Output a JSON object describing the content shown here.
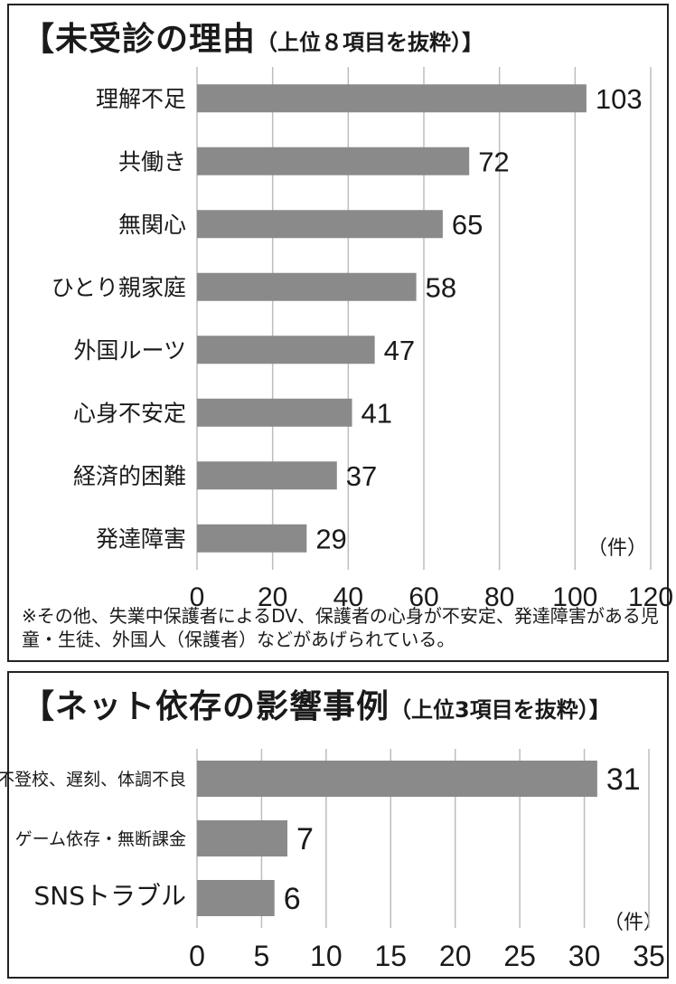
{
  "chart_data": [
    {
      "type": "bar",
      "orientation": "horizontal",
      "title": "【未受診の理由",
      "subtitle": "（上位８項目を抜粋）】",
      "categories": [
        "理解不足",
        "共働き",
        "無関心",
        "ひとり親家庭",
        "外国ルーツ",
        "心身不安定",
        "経済的困難",
        "発達障害"
      ],
      "values": [
        103,
        72,
        65,
        58,
        47,
        41,
        37,
        29
      ],
      "xlim": [
        0,
        120
      ],
      "xticks": [
        0,
        20,
        40,
        60,
        80,
        100,
        120
      ],
      "unit_label": "（件）",
      "grid": true,
      "bar_color": "#8a8a8a",
      "note": "※その他、失業中保護者によるDV、保護者の心身が不安定、発達障害がある児童・生徒、外国人（保護者）などがあげられている。"
    },
    {
      "type": "bar",
      "orientation": "horizontal",
      "title": "【ネット依存の影響事例",
      "subtitle": "（上位3項目を抜粋）】",
      "categories": [
        "不登校、遅刻、体調不良",
        "ゲーム依存・無断課金",
        "SNSトラブル"
      ],
      "values": [
        31,
        7,
        6
      ],
      "xlim": [
        0,
        35
      ],
      "xticks": [
        0,
        5,
        10,
        15,
        20,
        25,
        30,
        35
      ],
      "unit_label": "（件）",
      "grid": true,
      "bar_color": "#8a8a8a"
    }
  ]
}
